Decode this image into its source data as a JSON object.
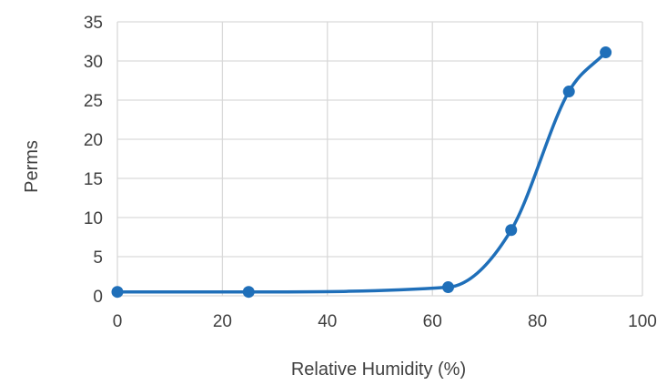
{
  "chart_data": {
    "type": "line",
    "title": "",
    "xlabel": "Relative Humidity (%)",
    "ylabel": "Perms",
    "xlim": [
      0,
      100
    ],
    "ylim": [
      0,
      35
    ],
    "x_ticks": [
      0,
      20,
      40,
      60,
      80,
      100
    ],
    "y_ticks": [
      0,
      5,
      10,
      15,
      20,
      25,
      30,
      35
    ],
    "grid": true,
    "smoothed": true,
    "series": [
      {
        "color": "#1f6fb9",
        "points": [
          {
            "x": 0,
            "y": 0.5
          },
          {
            "x": 25,
            "y": 0.5
          },
          {
            "x": 63,
            "y": 1.1
          },
          {
            "x": 75,
            "y": 8.4
          },
          {
            "x": 86,
            "y": 26.1
          },
          {
            "x": 93,
            "y": 31.1
          }
        ]
      }
    ],
    "gridline_color": "#d9d9d9",
    "axis_text_color": "#404040"
  }
}
